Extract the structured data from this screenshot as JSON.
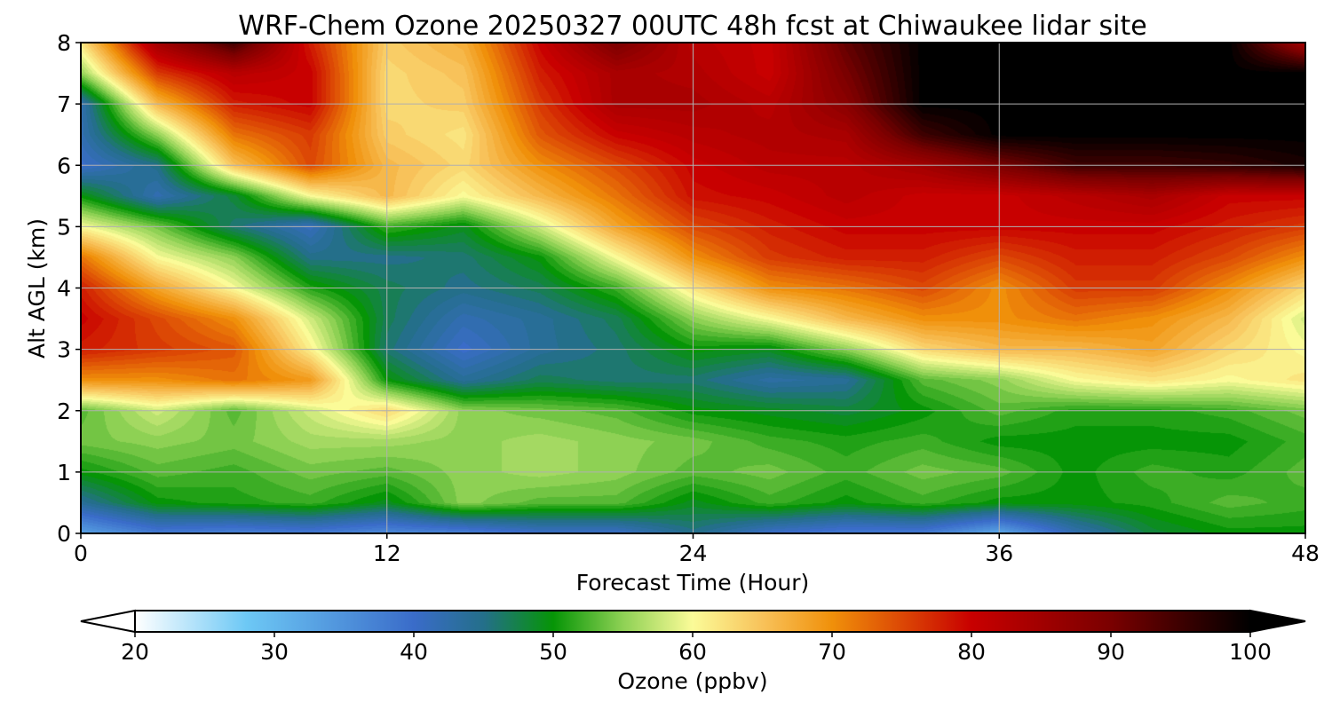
{
  "chart_data": {
    "type": "heatmap",
    "title": "WRF-Chem Ozone  20250327 00UTC 48h fcst at Chiwaukee lidar site",
    "xlabel": "Forecast Time (Hour)",
    "ylabel": "Alt AGL (km)",
    "xlim": [
      0,
      48
    ],
    "ylim": [
      0,
      8
    ],
    "xticks": [
      0,
      12,
      24,
      36,
      48
    ],
    "yticks": [
      0,
      1,
      2,
      3,
      4,
      5,
      6,
      7,
      8
    ],
    "grid": true,
    "x": [
      0,
      3,
      6,
      9,
      12,
      15,
      18,
      21,
      24,
      27,
      30,
      33,
      36,
      39,
      42,
      45,
      48
    ],
    "y": [
      0,
      0.5,
      1,
      1.5,
      2,
      2.5,
      3,
      3.5,
      4,
      4.5,
      5,
      5.5,
      6,
      6.5,
      7,
      7.5,
      8
    ],
    "z": [
      [
        33,
        38,
        37,
        38,
        36,
        37,
        40,
        40,
        45,
        40,
        38,
        38,
        32,
        42,
        48,
        50,
        50
      ],
      [
        44,
        50,
        51,
        52,
        49,
        55,
        53,
        53,
        49,
        52,
        50,
        52,
        50,
        50,
        51,
        53,
        52
      ],
      [
        50,
        53,
        52,
        54,
        53,
        55,
        56,
        55,
        53,
        54,
        52,
        54,
        53,
        50,
        52,
        51,
        53
      ],
      [
        54,
        55,
        54,
        56,
        56,
        55,
        56,
        55,
        54,
        52,
        51,
        52,
        50,
        50,
        50,
        50,
        52
      ],
      [
        53,
        58,
        53,
        58,
        63,
        55,
        54,
        53,
        50,
        49,
        48,
        50,
        53,
        51,
        51,
        52,
        54
      ],
      [
        70,
        70,
        72,
        69,
        50,
        44,
        47,
        46,
        46,
        43,
        44,
        53,
        55,
        60,
        62,
        60,
        62
      ],
      [
        78,
        76,
        74,
        61,
        46,
        40,
        44,
        46,
        50,
        49,
        55,
        63,
        66,
        66,
        68,
        63,
        60
      ],
      [
        80,
        75,
        70,
        58,
        47,
        42,
        44,
        47,
        55,
        60,
        66,
        70,
        70,
        72,
        70,
        66,
        58
      ],
      [
        78,
        68,
        60,
        51,
        47,
        45,
        47,
        52,
        62,
        70,
        72,
        75,
        70,
        76,
        76,
        70,
        63
      ],
      [
        72,
        60,
        55,
        45,
        45,
        46,
        50,
        60,
        70,
        76,
        78,
        78,
        75,
        78,
        78,
        75,
        70
      ],
      [
        60,
        54,
        46,
        41,
        52,
        49,
        58,
        68,
        75,
        78,
        80,
        80,
        80,
        80,
        80,
        78,
        76
      ],
      [
        50,
        42,
        48,
        60,
        66,
        60,
        66,
        72,
        79,
        80,
        82,
        80,
        80,
        82,
        84,
        80,
        80
      ],
      [
        40,
        45,
        65,
        75,
        66,
        63,
        70,
        75,
        80,
        82,
        82,
        85,
        90,
        95,
        95,
        96,
        98
      ],
      [
        42,
        55,
        72,
        76,
        64,
        62,
        74,
        80,
        82,
        83,
        84,
        95,
        100,
        100,
        100,
        100,
        100
      ],
      [
        42,
        66,
        78,
        80,
        63,
        64,
        76,
        84,
        84,
        82,
        88,
        100,
        100,
        100,
        100,
        100,
        100
      ],
      [
        55,
        76,
        82,
        80,
        63,
        65,
        78,
        84,
        83,
        80,
        90,
        100,
        100,
        100,
        100,
        100,
        100
      ],
      [
        62,
        85,
        95,
        78,
        64,
        67,
        80,
        90,
        82,
        80,
        92,
        100,
        100,
        100,
        100,
        100,
        84
      ]
    ],
    "colorbar": {
      "label": "Ozone  (ppbv)",
      "min": 20,
      "max": 100,
      "ticks": [
        20,
        30,
        40,
        50,
        60,
        70,
        80,
        90,
        100
      ],
      "extend": "both",
      "stops": [
        {
          "v": 20,
          "c": "#ffffff"
        },
        {
          "v": 28,
          "c": "#6dc8f5"
        },
        {
          "v": 40,
          "c": "#3a6cc9"
        },
        {
          "v": 45,
          "c": "#246f8a"
        },
        {
          "v": 50,
          "c": "#069506"
        },
        {
          "v": 55,
          "c": "#8ed154"
        },
        {
          "v": 60,
          "c": "#fbfb98"
        },
        {
          "v": 65,
          "c": "#f8c25a"
        },
        {
          "v": 70,
          "c": "#f0900a"
        },
        {
          "v": 80,
          "c": "#c80000"
        },
        {
          "v": 90,
          "c": "#7a0000"
        },
        {
          "v": 100,
          "c": "#000000"
        }
      ]
    }
  }
}
